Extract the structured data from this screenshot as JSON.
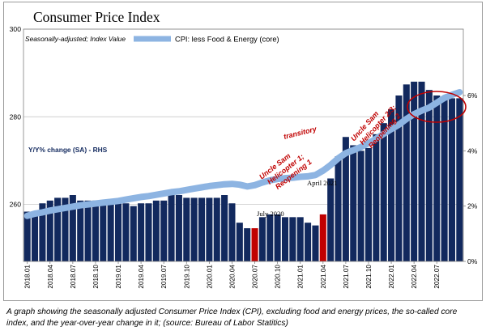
{
  "chart_data": {
    "type": "bar+line",
    "title": "Consumer Price Index",
    "subtitle": "Seasonally-adjusted; Index Value",
    "left_axis": {
      "label": "",
      "ticks": [
        260,
        280,
        300
      ],
      "ylim": [
        247,
        300
      ]
    },
    "right_axis": {
      "label": "Y/Y% change (SA) - RHS",
      "ticks": [
        "0%",
        "2%",
        "4%",
        "6%"
      ],
      "ylim": [
        0,
        8.4
      ]
    },
    "x_tick_labels": [
      "2018.01",
      "2018.04",
      "2018.07",
      "2018.10",
      "2019.01",
      "2019.04",
      "2019.07",
      "2019.10",
      "2020.01",
      "2020.04",
      "2020.07",
      "2020.10",
      "2021.01",
      "2021.04",
      "2021.07",
      "2021.10",
      "2022.01",
      "2022.04",
      "2022.07"
    ],
    "line_series": {
      "name": "CPI: less Food & Energy (core)",
      "color": "#8db4e2",
      "values": [
        257.4,
        257.9,
        258.2,
        258.6,
        258.9,
        259.2,
        259.5,
        259.8,
        260.0,
        260.2,
        260.4,
        260.6,
        260.8,
        261.1,
        261.4,
        261.7,
        261.9,
        262.2,
        262.5,
        262.8,
        263.0,
        263.3,
        263.6,
        263.9,
        264.2,
        264.4,
        264.6,
        264.7,
        264.5,
        264.1,
        264.4,
        265.0,
        265.5,
        265.8,
        266.0,
        266.1,
        266.3,
        266.4,
        266.7,
        267.7,
        269.0,
        270.5,
        271.7,
        272.4,
        273.1,
        274.0,
        275.0,
        276.1,
        277.2,
        278.2,
        279.5,
        280.6,
        281.4,
        282.1,
        283.2,
        284.3,
        285.0,
        285.6
      ]
    },
    "bar_series": {
      "name": "Y/Y% change (SA)",
      "color": "#12295e",
      "values": [
        1.8,
        1.8,
        2.1,
        2.2,
        2.3,
        2.3,
        2.4,
        2.2,
        2.2,
        2.2,
        2.2,
        2.2,
        2.2,
        2.1,
        2.0,
        2.1,
        2.1,
        2.2,
        2.2,
        2.4,
        2.4,
        2.3,
        2.3,
        2.3,
        2.3,
        2.3,
        2.4,
        2.1,
        1.4,
        1.2,
        1.2,
        1.6,
        1.7,
        1.7,
        1.6,
        1.6,
        1.6,
        1.4,
        1.3,
        1.7,
        3.0,
        3.8,
        4.5,
        4.2,
        4.0,
        4.1,
        4.6,
        5.0,
        5.5,
        6.0,
        6.4,
        6.5,
        6.5,
        6.2,
        6.0,
        5.9,
        5.9,
        5.9
      ],
      "highlight_color": "#c00000",
      "highlight_indices": [
        30,
        39
      ]
    },
    "annotations": [
      {
        "text": "July 2020",
        "color": "#000000"
      },
      {
        "text": "April 2021",
        "color": "#000000"
      },
      {
        "text": "transitory",
        "color": "#c00000"
      },
      {
        "text": "Uncle Sam Helicopter 1; Reopening 1",
        "color": "#c00000"
      },
      {
        "text": "Uncle Sam Helicopter 2/3; Reopening 2",
        "color": "#c00000"
      }
    ],
    "circle_annotation": "red ellipse around 2022 Y/Y peak"
  },
  "caption": "A graph showing the seasonally adjusted Consumer Price Index (CPI), excluding food and energy prices, the so-called core index, and the year-over-year change in it; (source: Bureau of Labor Statitics)"
}
